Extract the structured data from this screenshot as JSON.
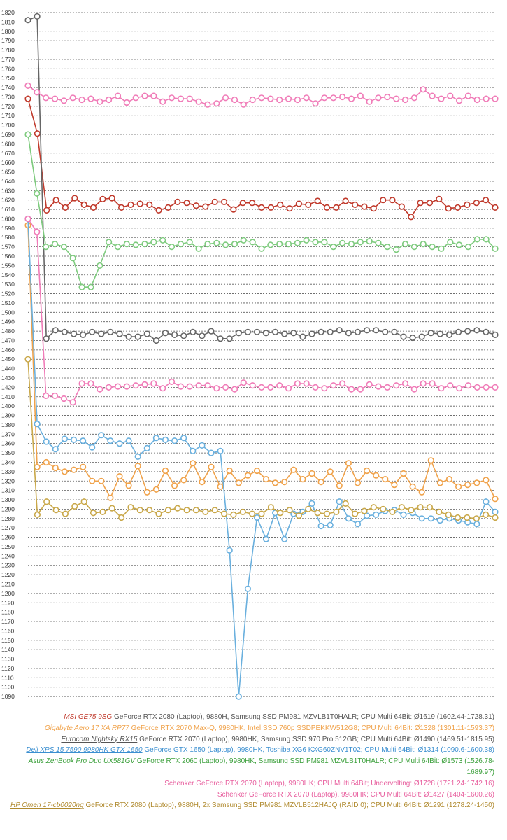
{
  "chart_data": {
    "type": "line",
    "title": "",
    "xlabel": "",
    "ylabel": "",
    "ylim": [
      1089,
      1820
    ],
    "y_tick_step": 10,
    "grid": true,
    "legend_position": "bottom",
    "series": [
      {
        "id": "s0",
        "name": "MSI GE75 9SG",
        "link": "MSI GE75 9SG",
        "rest": " GeForce RTX 2080 (Laptop), 9880H, Samsung SSD PM981 MZVLB1T0HALR; CPU Multi 64Bit: Ø1619 (1602.44-1728.31)",
        "color": "#c0392b",
        "values": [
          1728,
          1691,
          1609,
          1620,
          1612,
          1622,
          1615,
          1612,
          1621,
          1622,
          1612,
          1615,
          1616,
          1615,
          1609,
          1612,
          1618,
          1617,
          1614,
          1613,
          1618,
          1618,
          1610,
          1617,
          1617,
          1612,
          1612,
          1615,
          1611,
          1616,
          1615,
          1619,
          1612,
          1612,
          1619,
          1615,
          1613,
          1611,
          1620,
          1620,
          1613,
          1602,
          1617,
          1617,
          1621,
          1611,
          1612,
          1615,
          1617,
          1620,
          1612
        ]
      },
      {
        "id": "s1",
        "name": "Gigabyte Aero 17 XA RP77",
        "link": "Gigabyte Aero 17 XA RP77",
        "rest": " GeForce RTX 2070 Max-Q, 9980HK, Intel SSD 760p SSDPEKKW512G8; CPU Multi 64Bit: Ø1328 (1301.11-1593.37)",
        "color": "#f0a24a",
        "values": [
          1593,
          1335,
          1340,
          1334,
          1330,
          1332,
          1335,
          1320,
          1320,
          1302,
          1325,
          1315,
          1336,
          1308,
          1311,
          1331,
          1315,
          1321,
          1339,
          1319,
          1335,
          1314,
          1331,
          1318,
          1326,
          1331,
          1322,
          1318,
          1319,
          1332,
          1322,
          1328,
          1319,
          1330,
          1315,
          1339,
          1318,
          1331,
          1326,
          1322,
          1316,
          1328,
          1314,
          1308,
          1342,
          1318,
          1322,
          1314,
          1316,
          1318,
          1321,
          1301
        ]
      },
      {
        "id": "s2",
        "name": "Eurocom Nightsky RX15",
        "link": "Eurocom Nightsky RX15",
        "rest": " GeForce RTX 2070 (Laptop), 9980HK, Samsung SSD 970 Pro 512GB; CPU Multi 64Bit: Ø1490 (1469.51-1815.95)",
        "color": "#666666",
        "values": [
          1812,
          1816,
          1472,
          1481,
          1479,
          1477,
          1476,
          1479,
          1477,
          1479,
          1477,
          1474,
          1474,
          1477,
          1470,
          1478,
          1476,
          1475,
          1479,
          1475,
          1480,
          1472,
          1472,
          1478,
          1479,
          1479,
          1478,
          1479,
          1477,
          1478,
          1474,
          1477,
          1479,
          1479,
          1481,
          1478,
          1479,
          1481,
          1481,
          1479,
          1479,
          1474,
          1473,
          1474,
          1478,
          1477,
          1476,
          1479,
          1480,
          1481,
          1479,
          1476
        ]
      },
      {
        "id": "s3",
        "name": "Dell XPS 15 7590 9980HK GTX 1650",
        "link": "Dell XPS 15 7590 9980HK GTX 1650",
        "rest": " GeForce GTX 1650 (Laptop), 9980HK, Toshiba XG6 KXG60ZNV1T02; CPU Multi 64Bit: Ø1314 (1090.6-1600.38)",
        "color": "#6ab0de",
        "values": [
          1600,
          1381,
          1362,
          1354,
          1365,
          1364,
          1363,
          1356,
          1369,
          1363,
          1360,
          1363,
          1346,
          1355,
          1366,
          1364,
          1363,
          1366,
          1352,
          1358,
          1350,
          1352,
          1246,
          1090,
          1205,
          1281,
          1258,
          1286,
          1258,
          1285,
          1287,
          1296,
          1272,
          1273,
          1298,
          1280,
          1274,
          1283,
          1284,
          1288,
          1289,
          1284,
          1286,
          1280,
          1280,
          1278,
          1280,
          1278,
          1276,
          1274,
          1298,
          1287
        ]
      },
      {
        "id": "s4",
        "name": "Asus ZenBook Pro Duo UX581GV",
        "link": "Asus ZenBook Pro Duo UX581GV",
        "rest": " GeForce RTX 2060 (Laptop), 9980HK, Samsung SSD PM981 MZVLB1T0HALR; CPU Multi 64Bit: Ø1573 (1526.78-1689.97)",
        "color": "#7ecb7e",
        "values": [
          1690,
          1627,
          1570,
          1573,
          1570,
          1558,
          1527,
          1527,
          1550,
          1575,
          1570,
          1573,
          1572,
          1573,
          1575,
          1577,
          1570,
          1573,
          1575,
          1568,
          1573,
          1574,
          1572,
          1573,
          1577,
          1575,
          1568,
          1572,
          1573,
          1573,
          1574,
          1577,
          1575,
          1575,
          1570,
          1574,
          1573,
          1575,
          1576,
          1574,
          1570,
          1567,
          1573,
          1570,
          1573,
          1570,
          1568,
          1575,
          1572,
          1570,
          1578,
          1578,
          1568
        ]
      },
      {
        "id": "s5",
        "name": "Schenker GeForce RTX 2070 (Laptop), 9980HK; CPU Multi 64Bit; Undervolting",
        "link": "",
        "rest": "Schenker GeForce RTX 2070 (Laptop), 9980HK; CPU Multi 64Bit; Undervolting: Ø1728 (1721.24-1742.16)",
        "color": "#f07cb8",
        "values": [
          1742,
          1735,
          1729,
          1728,
          1726,
          1729,
          1727,
          1728,
          1725,
          1727,
          1731,
          1724,
          1729,
          1731,
          1731,
          1725,
          1729,
          1728,
          1728,
          1725,
          1722,
          1723,
          1729,
          1727,
          1722,
          1727,
          1729,
          1728,
          1727,
          1728,
          1727,
          1729,
          1723,
          1729,
          1729,
          1730,
          1728,
          1731,
          1725,
          1729,
          1730,
          1728,
          1727,
          1729,
          1738,
          1731,
          1728,
          1731,
          1726,
          1731,
          1727,
          1728,
          1728
        ]
      },
      {
        "id": "s6",
        "name": "Schenker GeForce RTX 2070 (Laptop), 9980HK; CPU Multi 64Bit",
        "link": "",
        "rest": "Schenker GeForce RTX 2070 (Laptop), 9980HK; CPU Multi 64Bit: Ø1427 (1404-1600.26)",
        "color": "#f07cb8",
        "values": [
          1600,
          1586,
          1411,
          1411,
          1408,
          1404,
          1424,
          1424,
          1418,
          1420,
          1421,
          1421,
          1422,
          1423,
          1424,
          1419,
          1426,
          1421,
          1421,
          1422,
          1422,
          1419,
          1420,
          1418,
          1425,
          1422,
          1420,
          1420,
          1422,
          1419,
          1424,
          1424,
          1420,
          1419,
          1422,
          1424,
          1418,
          1418,
          1423,
          1421,
          1420,
          1422,
          1424,
          1418,
          1424,
          1424,
          1419,
          1422,
          1419,
          1422,
          1420,
          1420,
          1420
        ]
      },
      {
        "id": "s7",
        "name": "HP Omen 17-cb0020ng",
        "link": "HP Omen 17-cb0020ng",
        "rest": " GeForce RTX 2080 (Laptop), 9880H, 2x Samsung SSD PM981 MZVLB512HAJQ (RAID 0); CPU Multi 64Bit: Ø1291 (1278.24-1450)",
        "color": "#c9a84a",
        "values": [
          1450,
          1284,
          1298,
          1289,
          1285,
          1293,
          1298,
          1286,
          1287,
          1291,
          1281,
          1292,
          1289,
          1289,
          1285,
          1289,
          1291,
          1289,
          1289,
          1287,
          1289,
          1285,
          1284,
          1287,
          1285,
          1285,
          1292,
          1286,
          1289,
          1283,
          1290,
          1286,
          1285,
          1287,
          1296,
          1285,
          1288,
          1292,
          1290,
          1287,
          1292,
          1289,
          1292,
          1292,
          1287,
          1284,
          1281,
          1281,
          1280,
          1284,
          1281
        ]
      }
    ]
  }
}
